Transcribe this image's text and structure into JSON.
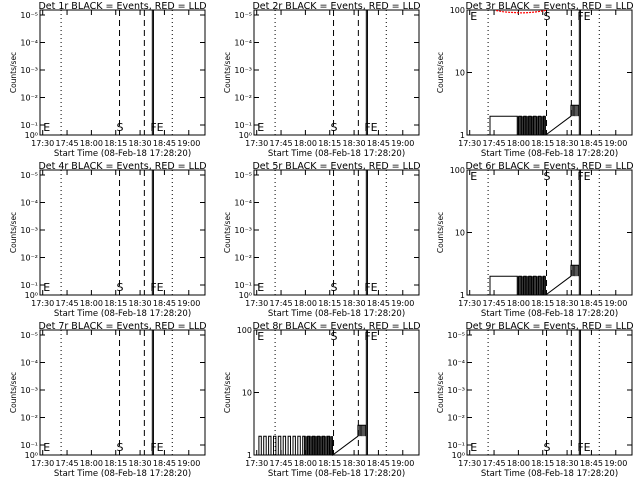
{
  "chart_data": {
    "type": "line",
    "xlabel": "Start Time (08-Feb-18 17:28:20)",
    "ylabel": "Counts/sec",
    "x_ticks": [
      "17:30",
      "17:45",
      "18:00",
      "18:15",
      "18:30",
      "18:45",
      "19:00"
    ],
    "x_tick_minutes": [
      1.667,
      16.667,
      31.667,
      46.667,
      61.667,
      76.667,
      91.667
    ],
    "x_range_minutes": [
      0,
      101.667
    ],
    "time_origin": "08-Feb-18 17:28:20",
    "colors": {
      "events": "#000000",
      "lld": "#ff0000"
    },
    "vlines": [
      {
        "label": "",
        "minute": 13.0,
        "style": "dotted"
      },
      {
        "label": "S",
        "minute": 49.0,
        "style": "dashed"
      },
      {
        "label": "",
        "minute": 64.3,
        "style": "dashed"
      },
      {
        "label": "",
        "minute": 69.2,
        "style": "solid"
      },
      {
        "label": "",
        "minute": 69.9,
        "style": "solid"
      },
      {
        "label": "",
        "minute": 81.5,
        "style": "dotted"
      }
    ],
    "panels": [
      {
        "title": "Det 1r BLACK = Events, RED = LLD",
        "scale": "log_small",
        "y_ticks": [
          "10⁰",
          "10⁻¹",
          "10⁻²",
          "10⁻³",
          "10⁻⁴",
          "10⁻⁵"
        ],
        "markers": [
          "E",
          "S",
          "FE"
        ],
        "events": [],
        "lld": []
      },
      {
        "title": "Det 2r BLACK = Events, RED = LLD",
        "scale": "log_small",
        "y_ticks": [
          "10⁰",
          "10⁻¹",
          "10⁻²",
          "10⁻³",
          "10⁻⁴",
          "10⁻⁵"
        ],
        "markers": [
          "E",
          "S",
          "FE"
        ],
        "events": [],
        "lld": []
      },
      {
        "title": "Det 3r BLACK = Events, RED = LLD",
        "scale": "log_large",
        "y_ticks": [
          "1",
          "10",
          "100"
        ],
        "markers": [
          "E",
          "S",
          "FE"
        ],
        "events": [
          [
            14.2,
            1
          ],
          [
            14.2,
            2
          ],
          [
            31.0,
            2
          ],
          [
            31.0,
            1
          ],
          [
            32.0,
            1
          ],
          [
            32.0,
            2
          ],
          [
            33.5,
            2
          ],
          [
            33.5,
            1
          ],
          [
            35.0,
            1
          ],
          [
            35.0,
            2
          ],
          [
            36.5,
            2
          ],
          [
            36.5,
            1
          ],
          [
            38.0,
            1
          ],
          [
            38.0,
            2
          ],
          [
            39.5,
            2
          ],
          [
            39.5,
            1
          ],
          [
            41.0,
            1
          ],
          [
            41.0,
            2
          ],
          [
            42.5,
            2
          ],
          [
            42.5,
            1
          ],
          [
            44.0,
            1
          ],
          [
            44.0,
            2
          ],
          [
            45.5,
            2
          ],
          [
            45.5,
            1
          ],
          [
            47.0,
            1
          ],
          [
            47.0,
            2
          ],
          [
            48.0,
            2
          ],
          [
            48.0,
            1
          ],
          [
            48.5,
            1
          ],
          [
            64.0,
            2
          ],
          [
            64.0,
            3
          ],
          [
            69.0,
            3
          ],
          [
            69.0,
            2
          ]
        ],
        "lld": [
          [
            18,
            98
          ],
          [
            22,
            94
          ],
          [
            26,
            92
          ],
          [
            30,
            91
          ],
          [
            34,
            90
          ],
          [
            38,
            91
          ],
          [
            42,
            93
          ],
          [
            46,
            96
          ],
          [
            49,
            99
          ]
        ]
      },
      {
        "title": "Det 4r BLACK = Events, RED = LLD",
        "scale": "log_small",
        "y_ticks": [
          "10⁰",
          "10⁻¹",
          "10⁻²",
          "10⁻³",
          "10⁻⁴",
          "10⁻⁵"
        ],
        "markers": [
          "E",
          "S",
          "FE"
        ],
        "events": [],
        "lld": []
      },
      {
        "title": "Det 5r BLACK = Events, RED = LLD",
        "scale": "log_small",
        "y_ticks": [
          "10⁰",
          "10⁻¹",
          "10⁻²",
          "10⁻³",
          "10⁻⁴",
          "10⁻⁵"
        ],
        "markers": [
          "E",
          "S",
          "FE"
        ],
        "events": [],
        "lld": []
      },
      {
        "title": "Det 6r BLACK = Events, RED = LLD",
        "scale": "log_large",
        "y_ticks": [
          "1",
          "10",
          "100"
        ],
        "markers": [
          "E",
          "S",
          "FE"
        ],
        "events": [
          [
            14.2,
            1
          ],
          [
            14.2,
            2
          ],
          [
            31.0,
            2
          ],
          [
            31.0,
            1
          ],
          [
            32.0,
            1
          ],
          [
            32.0,
            2
          ],
          [
            33.5,
            2
          ],
          [
            33.5,
            1
          ],
          [
            35.0,
            1
          ],
          [
            35.0,
            2
          ],
          [
            36.5,
            2
          ],
          [
            36.5,
            1
          ],
          [
            38.0,
            1
          ],
          [
            38.0,
            2
          ],
          [
            39.5,
            2
          ],
          [
            39.5,
            1
          ],
          [
            41.0,
            1
          ],
          [
            41.0,
            2
          ],
          [
            42.5,
            2
          ],
          [
            42.5,
            1
          ],
          [
            44.0,
            1
          ],
          [
            44.0,
            2
          ],
          [
            45.5,
            2
          ],
          [
            45.5,
            1
          ],
          [
            47.0,
            1
          ],
          [
            47.0,
            2
          ],
          [
            48.0,
            2
          ],
          [
            48.0,
            1
          ],
          [
            48.5,
            1
          ],
          [
            64.0,
            2
          ],
          [
            64.0,
            3
          ],
          [
            69.0,
            3
          ],
          [
            69.0,
            2
          ]
        ],
        "lld": []
      },
      {
        "title": "Det 7r BLACK = Events, RED = LLD",
        "scale": "log_small",
        "y_ticks": [
          "10⁰",
          "10⁻¹",
          "10⁻²",
          "10⁻³",
          "10⁻⁴",
          "10⁻⁵"
        ],
        "markers": [
          "E",
          "S",
          "FE"
        ],
        "events": [],
        "lld": []
      },
      {
        "title": "Det 8r BLACK = Events, RED = LLD",
        "scale": "log_large",
        "y_ticks": [
          "1",
          "10",
          "100"
        ],
        "markers": [
          "E",
          "S",
          "FE"
        ],
        "events": [
          [
            3.0,
            1
          ],
          [
            3.0,
            2
          ],
          [
            4.5,
            2
          ],
          [
            4.5,
            1
          ],
          [
            6.0,
            1
          ],
          [
            6.0,
            2
          ],
          [
            7.5,
            2
          ],
          [
            7.5,
            1
          ],
          [
            9.0,
            1
          ],
          [
            9.0,
            2
          ],
          [
            10.5,
            2
          ],
          [
            10.5,
            1
          ],
          [
            12.0,
            1
          ],
          [
            12.0,
            2
          ],
          [
            13.5,
            2
          ],
          [
            13.5,
            1
          ],
          [
            15.0,
            1
          ],
          [
            15.0,
            2
          ],
          [
            16.5,
            2
          ],
          [
            16.5,
            1
          ],
          [
            18.0,
            1
          ],
          [
            18.0,
            2
          ],
          [
            19.5,
            2
          ],
          [
            19.5,
            1
          ],
          [
            21.0,
            1
          ],
          [
            21.0,
            2
          ],
          [
            22.5,
            2
          ],
          [
            22.5,
            1
          ],
          [
            24.0,
            1
          ],
          [
            24.0,
            2
          ],
          [
            25.5,
            2
          ],
          [
            25.5,
            1
          ],
          [
            27.0,
            1
          ],
          [
            27.0,
            2
          ],
          [
            28.5,
            2
          ],
          [
            28.5,
            1
          ],
          [
            30.0,
            1
          ],
          [
            30.0,
            2
          ],
          [
            31.5,
            2
          ],
          [
            31.5,
            1
          ],
          [
            33.0,
            1
          ],
          [
            33.0,
            2
          ],
          [
            34.5,
            2
          ],
          [
            34.5,
            1
          ],
          [
            36.0,
            1
          ],
          [
            36.0,
            2
          ],
          [
            37.5,
            2
          ],
          [
            37.5,
            1
          ],
          [
            39.0,
            1
          ],
          [
            39.0,
            2
          ],
          [
            40.5,
            2
          ],
          [
            40.5,
            1
          ],
          [
            42.0,
            1
          ],
          [
            42.0,
            2
          ],
          [
            43.5,
            2
          ],
          [
            43.5,
            1
          ],
          [
            45.0,
            1
          ],
          [
            45.0,
            2
          ],
          [
            46.5,
            2
          ],
          [
            46.5,
            1
          ],
          [
            48.0,
            1
          ],
          [
            48.0,
            2
          ],
          [
            48.5,
            1
          ],
          [
            64.0,
            2
          ],
          [
            64.0,
            3
          ],
          [
            69.0,
            3
          ],
          [
            69.0,
            2
          ]
        ],
        "lld": []
      },
      {
        "title": "Det 9r BLACK = Events, RED = LLD",
        "scale": "log_small",
        "y_ticks": [
          "10⁰",
          "10⁻¹",
          "10⁻²",
          "10⁻³",
          "10⁻⁴",
          "10⁻⁵"
        ],
        "markers": [
          "E",
          "S",
          "FE"
        ],
        "events": [],
        "lld": []
      }
    ]
  }
}
